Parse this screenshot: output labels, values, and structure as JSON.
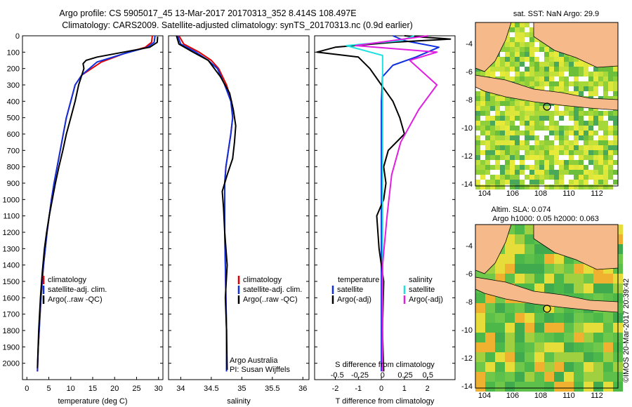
{
  "header": {
    "title_line1": "Argo profile: CS 5905017_45 13-Mar-2017 20170313_352 8.414S 108.497E",
    "title_line2": "Climatology: CARS2009. Satellite-adjusted climatology: synTS_20170313.nc (0.9d earlier)"
  },
  "colors": {
    "climatology": "#e00000",
    "satellite": "#1030e0",
    "argo": "#000000",
    "salinity_sat": "#20e0e0",
    "salinity_argo": "#e020e0",
    "land": "#f5b98a"
  },
  "chart_data": [
    {
      "type": "line",
      "id": "temperature",
      "xlabel": "temperature (deg C)",
      "ylabel": "",
      "xlim": [
        -1,
        31
      ],
      "ylim": [
        2100,
        0
      ],
      "xticks": [
        "0",
        "5",
        "10",
        "15",
        "20",
        "25",
        "30"
      ],
      "yticks": [
        "0",
        "100",
        "200",
        "300",
        "400",
        "500",
        "600",
        "700",
        "800",
        "900",
        "1000",
        "1100",
        "1200",
        "1300",
        "1400",
        "1500",
        "1600",
        "1700",
        "1800",
        "1900",
        "2000"
      ],
      "legend": [
        "climatology",
        "satellite-adj. clim.",
        "Argo(..raw -QC)"
      ],
      "series": [
        {
          "name": "climatology",
          "color": "#e00000",
          "x": [
            28.6,
            28.4,
            27,
            22,
            17,
            12.5,
            11,
            10,
            9,
            8.3,
            7.6,
            6.9,
            6.2,
            5.6,
            5.1,
            4.6,
            4.2,
            3.8,
            3.5,
            3.2,
            2.9,
            2.6,
            2.4
          ],
          "y": [
            0,
            40,
            70,
            110,
            160,
            240,
            300,
            400,
            500,
            600,
            700,
            800,
            900,
            1000,
            1100,
            1200,
            1300,
            1400,
            1500,
            1600,
            1750,
            1900,
            2050
          ]
        },
        {
          "name": "satellite-adj. clim.",
          "color": "#1030e0",
          "x": [
            29.2,
            29,
            27.5,
            22,
            16,
            12.5,
            11,
            10,
            9,
            8.3,
            7.6,
            6.9,
            6.2,
            5.6,
            5.1,
            4.6,
            4.2,
            3.8,
            3.5,
            3.2,
            2.9,
            2.6,
            2.4
          ],
          "y": [
            0,
            40,
            70,
            110,
            160,
            240,
            300,
            400,
            500,
            600,
            700,
            800,
            900,
            1000,
            1100,
            1200,
            1300,
            1400,
            1500,
            1600,
            1750,
            1900,
            2050
          ]
        },
        {
          "name": "Argo(..raw -QC)",
          "color": "#000000",
          "x": [
            29.8,
            29.7,
            28,
            22,
            16,
            13.5,
            12.8,
            13,
            11.8,
            11,
            10,
            9,
            8.2,
            7.3,
            6.5,
            5.8,
            5.1,
            4.5,
            4,
            3.5,
            3.1,
            2.7,
            2.4
          ],
          "y": [
            5,
            40,
            70,
            100,
            130,
            150,
            170,
            200,
            300,
            400,
            500,
            600,
            700,
            800,
            900,
            1000,
            1100,
            1200,
            1300,
            1450,
            1600,
            1800,
            2030
          ]
        }
      ]
    },
    {
      "type": "line",
      "id": "salinity",
      "xlabel": "salinity",
      "ylabel": "",
      "xlim": [
        33.8,
        36.1
      ],
      "ylim": [
        2100,
        0
      ],
      "xticks": [
        "34",
        "34.5",
        "35",
        "35.5",
        "36"
      ],
      "legend": [
        "climatology",
        "satellite-adj. clim.",
        "Argo(..raw -QC)"
      ],
      "series": [
        {
          "name": "climatology",
          "color": "#e00000",
          "x": [
            33.97,
            34.05,
            34.3,
            34.5,
            34.62,
            34.75,
            34.83,
            34.85,
            34.82,
            34.78,
            34.74,
            34.72,
            34.72,
            34.72,
            34.73,
            34.74,
            34.75,
            34.75
          ],
          "y": [
            0,
            50,
            100,
            150,
            200,
            300,
            400,
            500,
            600,
            700,
            800,
            900,
            1000,
            1200,
            1400,
            1600,
            1800,
            2050
          ]
        },
        {
          "name": "satellite-adj. clim.",
          "color": "#1030e0",
          "x": [
            33.95,
            34.0,
            34.25,
            34.45,
            34.6,
            34.72,
            34.82,
            34.85,
            34.82,
            34.78,
            34.74,
            34.72,
            34.72,
            34.72,
            34.73,
            34.74,
            34.75,
            34.75
          ],
          "y": [
            0,
            50,
            100,
            150,
            200,
            300,
            400,
            500,
            600,
            700,
            800,
            900,
            1000,
            1200,
            1400,
            1600,
            1800,
            2050
          ]
        },
        {
          "name": "Argo(..raw -QC)",
          "color": "#000000",
          "x": [
            33.93,
            33.97,
            34.2,
            34.45,
            34.65,
            34.8,
            34.86,
            34.9,
            34.88,
            34.85,
            34.76,
            34.68,
            34.7,
            34.72,
            34.76,
            34.73,
            34.75,
            34.76
          ],
          "y": [
            0,
            50,
            100,
            150,
            250,
            350,
            450,
            550,
            650,
            750,
            850,
            950,
            1050,
            1200,
            1400,
            1600,
            1800,
            2040
          ]
        }
      ]
    },
    {
      "type": "line",
      "id": "difference",
      "xlabel": "T difference from climatology",
      "xlabel_top": "S difference from climatology",
      "xlim": [
        -2.9,
        3.2
      ],
      "ylim": [
        2100,
        0
      ],
      "xticks": [
        "-2",
        "-1",
        "0",
        "1",
        "2"
      ],
      "xticks_top": [
        "-0.5",
        "-0.25",
        "0",
        "0.25",
        "0.5"
      ],
      "legend_temperature_title": "temperature",
      "legend_salinity_title": "salinity",
      "legend": [
        "satellite",
        "Argo(-adj)",
        "satellite",
        "Argo(-adj)"
      ],
      "series": [
        {
          "name": "T satellite",
          "color": "#1030e0",
          "x": [
            0.5,
            1,
            2.5,
            1.5,
            0.5,
            0.05,
            0,
            0,
            0,
            0
          ],
          "y": [
            0,
            30,
            70,
            130,
            180,
            250,
            400,
            800,
            1400,
            2050
          ]
        },
        {
          "name": "T Argo(-adj)",
          "color": "#000000",
          "x": [
            1,
            3,
            0.5,
            -2,
            -2.8,
            -1,
            -0.5,
            0,
            0.5,
            0.8,
            1,
            0.3,
            0.1,
            0.2,
            0.1,
            -0.2,
            -0.1,
            0.1,
            0.05,
            0.1
          ],
          "y": [
            0,
            20,
            40,
            70,
            100,
            130,
            200,
            300,
            400,
            500,
            600,
            700,
            800,
            900,
            1000,
            1100,
            1300,
            1500,
            1800,
            2050
          ]
        },
        {
          "name": "S satellite",
          "color": "#20e0e0",
          "x": [
            0.35,
            0.2,
            -0.4,
            0,
            0,
            0,
            0,
            0,
            0
          ],
          "y": [
            0,
            30,
            60,
            120,
            250,
            500,
            1000,
            1500,
            2050
          ]
        },
        {
          "name": "S Argo(-adj)",
          "color": "#e020e0",
          "x": [
            0.5,
            -0.3,
            0.6,
            0.3,
            0.6,
            0.4,
            0.2,
            0.1,
            0.05,
            0,
            0,
            0
          ],
          "y": [
            0,
            60,
            100,
            150,
            300,
            450,
            650,
            850,
            1100,
            1400,
            1700,
            2050
          ]
        }
      ]
    }
  ],
  "footer": {
    "institution": "Argo Australia",
    "pi": "PI: Susan Wijffels"
  },
  "maps": [
    {
      "title": "sat. SST: NaN Argo: 29.9",
      "xticks": [
        "104",
        "106",
        "108",
        "110",
        "112"
      ],
      "yticks": [
        "-4",
        "-6",
        "-8",
        "-10",
        "-12",
        "-14"
      ]
    },
    {
      "title": "Altim. SLA: 0.074",
      "subtitle": "Argo h1000: 0.05 h2000: 0.063",
      "xticks": [
        "104",
        "106",
        "108",
        "110",
        "112"
      ],
      "yticks": [
        "-4",
        "-6",
        "-8",
        "-10",
        "-12",
        "-14"
      ]
    }
  ],
  "credit": "©IMOS 20-Mar-2017 20:39:42"
}
